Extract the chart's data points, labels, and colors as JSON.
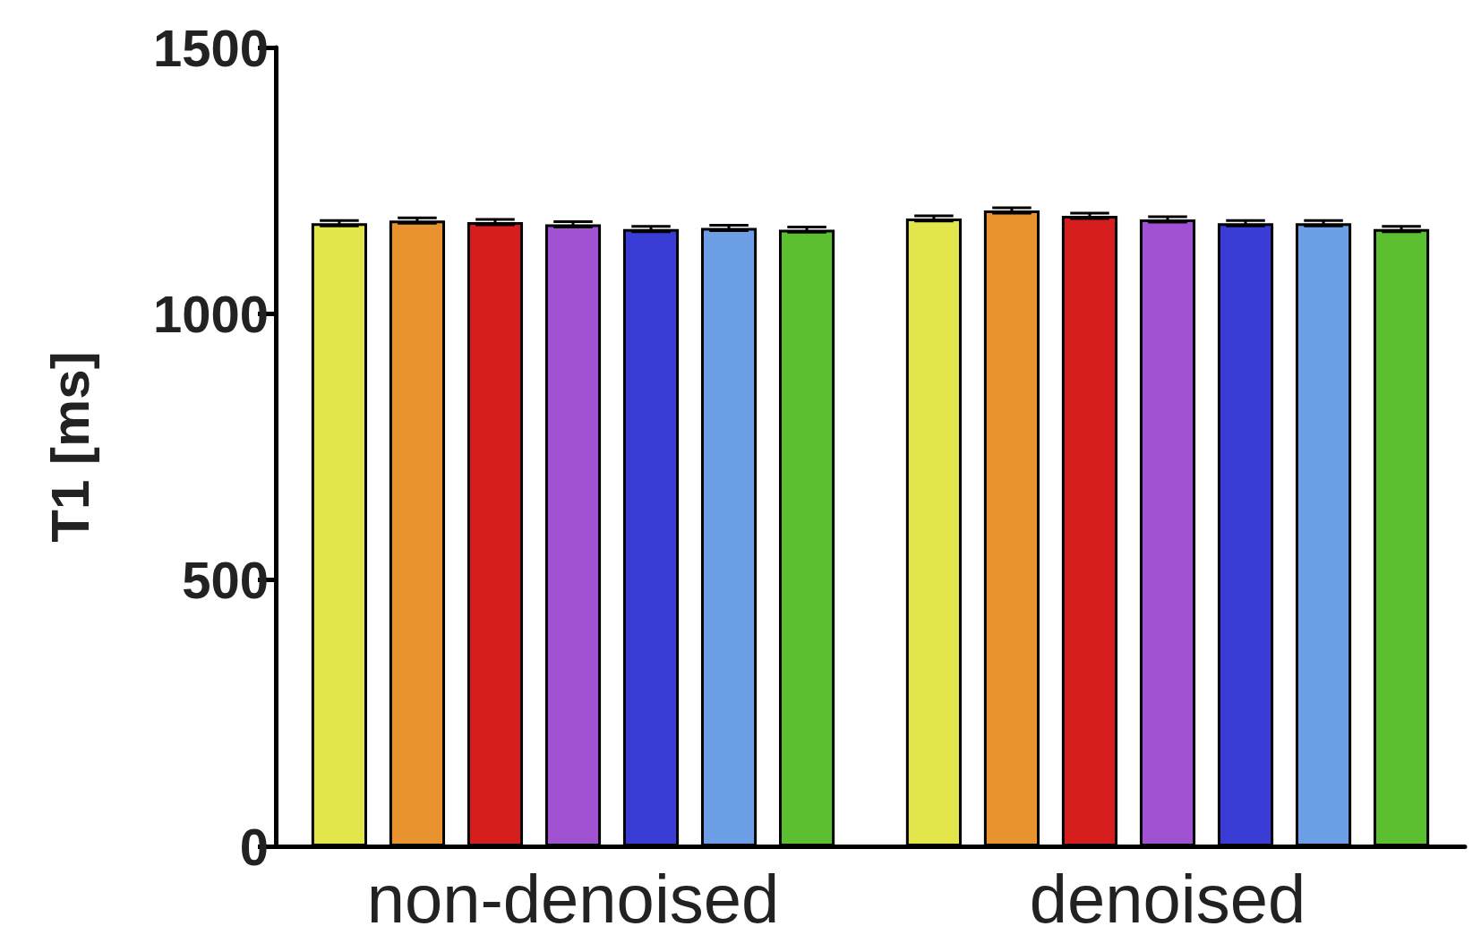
{
  "chart_data": {
    "type": "bar",
    "ylabel": "T1 [ms]",
    "categories": [
      "non-denoised",
      "denoised"
    ],
    "series": [
      {
        "color": "#e3e64a",
        "values": [
          1170,
          1179
        ],
        "errors": [
          5,
          5
        ]
      },
      {
        "color": "#e8932f",
        "values": [
          1175,
          1194
        ],
        "errors": [
          5,
          5
        ]
      },
      {
        "color": "#d61e1e",
        "values": [
          1172,
          1184
        ],
        "errors": [
          5,
          5
        ]
      },
      {
        "color": "#a052d2",
        "values": [
          1168,
          1177
        ],
        "errors": [
          5,
          5
        ]
      },
      {
        "color": "#3a3cd6",
        "values": [
          1159,
          1170
        ],
        "errors": [
          5,
          5
        ]
      },
      {
        "color": "#6c9fe6",
        "values": [
          1161,
          1170
        ],
        "errors": [
          5,
          5
        ]
      },
      {
        "color": "#5cbf30",
        "values": [
          1158,
          1159
        ],
        "errors": [
          5,
          5
        ]
      }
    ],
    "ylim": [
      0,
      1500
    ],
    "yticks": [
      0,
      500,
      {
        "value": 1000,
        "label": "1000"
      },
      {
        "value": 1500,
        "label": "1500"
      }
    ],
    "grid": false
  }
}
